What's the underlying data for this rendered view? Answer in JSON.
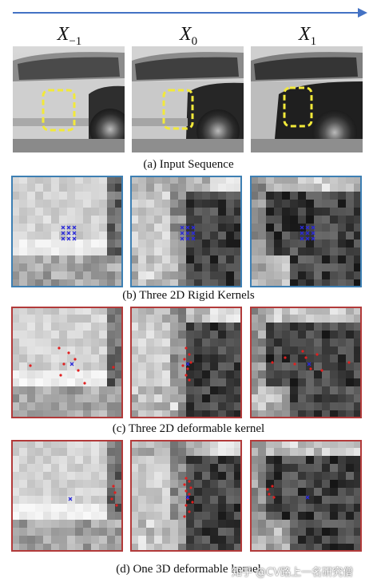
{
  "frames": [
    {
      "symbol": "X",
      "subscript": "−1"
    },
    {
      "symbol": "X",
      "subscript": "0"
    },
    {
      "symbol": "X",
      "subscript": "1"
    }
  ],
  "captions": {
    "a": "(a) Input Sequence",
    "b": "(b) Three 2D Rigid Kernels",
    "c": "(c) Three 2D deformable kernel",
    "d": "(d) One 3D deformable kernel"
  },
  "watermark": "知乎 @CV路上一名研究僧",
  "colors": {
    "timeline_arrow": "#4472c4",
    "roi_box": "#f2e93a",
    "rigid_border": "#3d7fb3",
    "deformable_border": "#b23a3a",
    "center_point": "#2a2ad8",
    "sampling_point": "#e02020"
  }
}
